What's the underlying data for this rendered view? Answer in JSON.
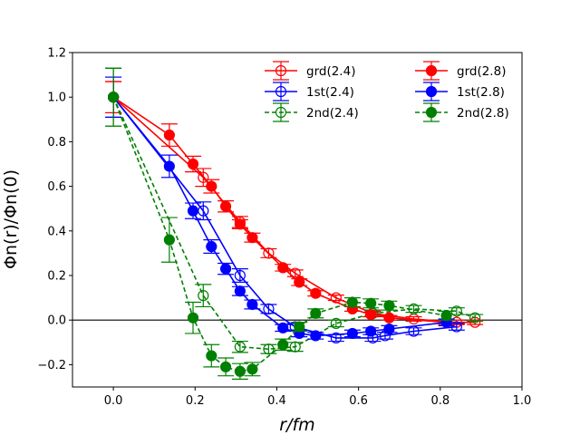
{
  "chart_data": {
    "type": "line",
    "title": "",
    "xlabel": "r/fm",
    "ylabel": "Φn(r)/Φn(0)",
    "xlim": [
      -0.1,
      1.0
    ],
    "ylim": [
      -0.3,
      1.2
    ],
    "xticks": [
      "0.0",
      "0.2",
      "0.4",
      "0.6",
      "0.8",
      "1.0"
    ],
    "yticks": [
      "−0.2",
      "0.0",
      "0.2",
      "0.4",
      "0.6",
      "0.8",
      "1.0",
      "1.2"
    ],
    "xtick_values": [
      0.0,
      0.2,
      0.4,
      0.6,
      0.8,
      1.0
    ],
    "ytick_values": [
      -0.2,
      0.0,
      0.2,
      0.4,
      0.6,
      0.8,
      1.0,
      1.2
    ],
    "reference_line_y": 0.0,
    "legend_position": "top-right",
    "series": [
      {
        "name": "grd(2.4)",
        "color": "#ff0000",
        "marker": "open-circle",
        "linestyle": "solid",
        "points": [
          [
            0.0,
            1.0
          ],
          [
            0.22,
            0.64
          ],
          [
            0.31,
            0.44
          ],
          [
            0.38,
            0.3
          ],
          [
            0.445,
            0.21
          ],
          [
            0.545,
            0.1
          ],
          [
            0.635,
            0.03
          ],
          [
            0.735,
            0.005
          ],
          [
            0.84,
            -0.01
          ],
          [
            0.885,
            -0.01
          ]
        ],
        "errors": [
          0.07,
          0.04,
          0.025,
          0.02,
          0.015,
          0.012,
          0.01,
          0.01,
          0.01,
          0.01
        ]
      },
      {
        "name": "1st(2.4)",
        "color": "#0000ff",
        "marker": "open-circle",
        "linestyle": "solid",
        "points": [
          [
            0.0,
            1.0
          ],
          [
            0.22,
            0.49
          ],
          [
            0.31,
            0.2
          ],
          [
            0.38,
            0.05
          ],
          [
            0.445,
            -0.03
          ],
          [
            0.545,
            -0.08
          ],
          [
            0.635,
            -0.08
          ],
          [
            0.665,
            -0.07
          ],
          [
            0.735,
            -0.05
          ],
          [
            0.84,
            -0.03
          ]
        ],
        "errors": [
          0.09,
          0.04,
          0.03,
          0.02,
          0.015,
          0.015,
          0.015,
          0.015,
          0.015,
          0.015
        ]
      },
      {
        "name": "2nd(2.4)",
        "color": "#008000",
        "marker": "open-circle",
        "linestyle": "dashed",
        "points": [
          [
            0.0,
            1.0
          ],
          [
            0.22,
            0.11
          ],
          [
            0.31,
            -0.12
          ],
          [
            0.38,
            -0.13
          ],
          [
            0.445,
            -0.12
          ],
          [
            0.545,
            -0.015
          ],
          [
            0.635,
            0.03
          ],
          [
            0.735,
            0.05
          ],
          [
            0.84,
            0.04
          ],
          [
            0.885,
            0.01
          ]
        ],
        "errors": [
          0.13,
          0.05,
          0.025,
          0.02,
          0.02,
          0.015,
          0.015,
          0.015,
          0.015,
          0.015
        ]
      },
      {
        "name": "grd(2.8)",
        "color": "#ff0000",
        "marker": "filled-circle",
        "linestyle": "solid",
        "points": [
          [
            0.0,
            1.0
          ],
          [
            0.137,
            0.83
          ],
          [
            0.195,
            0.7
          ],
          [
            0.24,
            0.6
          ],
          [
            0.275,
            0.51
          ],
          [
            0.31,
            0.43
          ],
          [
            0.34,
            0.37
          ],
          [
            0.415,
            0.235
          ],
          [
            0.455,
            0.17
          ],
          [
            0.495,
            0.12
          ],
          [
            0.585,
            0.05
          ],
          [
            0.63,
            0.025
          ],
          [
            0.675,
            0.01
          ],
          [
            0.815,
            -0.01
          ]
        ],
        "errors": [
          0.07,
          0.05,
          0.035,
          0.03,
          0.025,
          0.02,
          0.02,
          0.015,
          0.015,
          0.012,
          0.01,
          0.01,
          0.01,
          0.01
        ]
      },
      {
        "name": "1st(2.8)",
        "color": "#0000ff",
        "marker": "filled-circle",
        "linestyle": "solid",
        "points": [
          [
            0.0,
            1.0
          ],
          [
            0.137,
            0.69
          ],
          [
            0.195,
            0.49
          ],
          [
            0.24,
            0.33
          ],
          [
            0.275,
            0.23
          ],
          [
            0.31,
            0.13
          ],
          [
            0.34,
            0.07
          ],
          [
            0.415,
            -0.035
          ],
          [
            0.455,
            -0.06
          ],
          [
            0.495,
            -0.07
          ],
          [
            0.585,
            -0.06
          ],
          [
            0.63,
            -0.05
          ],
          [
            0.675,
            -0.04
          ],
          [
            0.815,
            -0.01
          ]
        ],
        "errors": [
          0.09,
          0.05,
          0.035,
          0.03,
          0.025,
          0.02,
          0.02,
          0.015,
          0.015,
          0.015,
          0.015,
          0.015,
          0.015,
          0.015
        ]
      },
      {
        "name": "2nd(2.8)",
        "color": "#008000",
        "marker": "filled-circle",
        "linestyle": "dashed",
        "points": [
          [
            0.0,
            1.0
          ],
          [
            0.137,
            0.36
          ],
          [
            0.195,
            0.01
          ],
          [
            0.24,
            -0.16
          ],
          [
            0.275,
            -0.21
          ],
          [
            0.31,
            -0.23
          ],
          [
            0.34,
            -0.22
          ],
          [
            0.415,
            -0.11
          ],
          [
            0.455,
            -0.03
          ],
          [
            0.495,
            0.03
          ],
          [
            0.585,
            0.08
          ],
          [
            0.63,
            0.075
          ],
          [
            0.675,
            0.065
          ],
          [
            0.815,
            0.02
          ]
        ],
        "errors": [
          0.13,
          0.1,
          0.07,
          0.05,
          0.04,
          0.035,
          0.03,
          0.025,
          0.02,
          0.02,
          0.02,
          0.02,
          0.02,
          0.02
        ]
      }
    ]
  }
}
